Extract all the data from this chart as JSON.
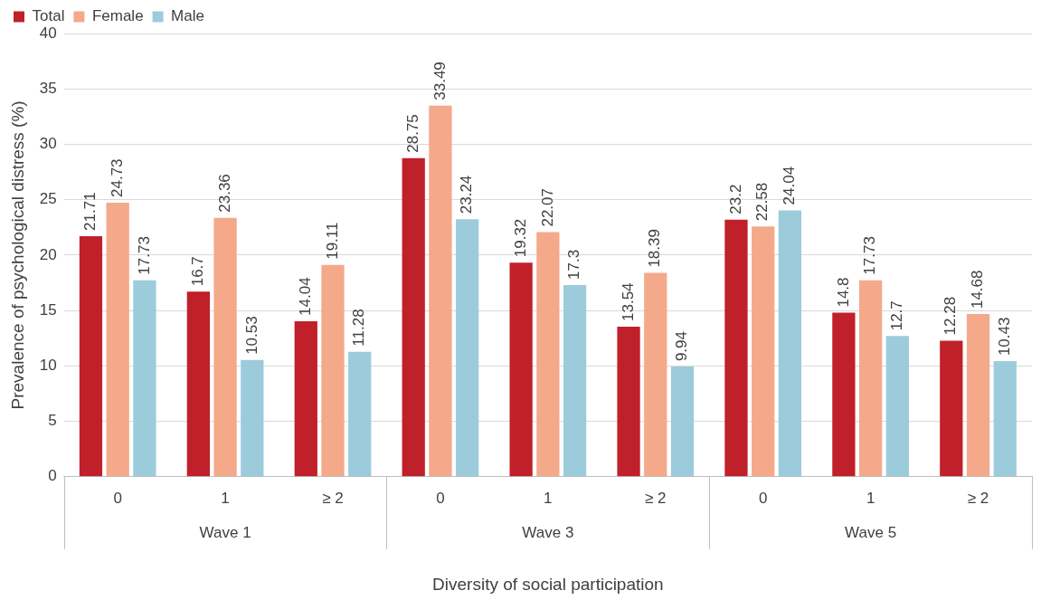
{
  "chart_data": {
    "type": "bar",
    "xlabel": "Diversity of social participation",
    "ylabel": "Prevalence of psychological distress (%)",
    "categories": [
      "0",
      "1",
      "≥ 2",
      "0",
      "1",
      "≥ 2",
      "0",
      "1",
      "≥ 2"
    ],
    "series": [
      {
        "name": "Total",
        "color": "#c0202a",
        "values": [
          21.71,
          16.7,
          14.04,
          28.75,
          19.32,
          13.54,
          23.2,
          14.8,
          12.28
        ]
      },
      {
        "name": "Female",
        "color": "#f4a98a",
        "values": [
          24.73,
          23.36,
          19.11,
          33.49,
          22.07,
          18.39,
          22.58,
          17.73,
          14.68
        ]
      },
      {
        "name": "Male",
        "color": "#9ccbdc",
        "values": [
          17.73,
          10.53,
          11.28,
          23.24,
          17.3,
          9.94,
          24.04,
          12.7,
          10.43
        ]
      }
    ],
    "ylim": [
      0,
      40
    ],
    "yticks": [
      0,
      5,
      10,
      15,
      20,
      25,
      30,
      35,
      40
    ],
    "grid": "y",
    "legend": "top left",
    "data_labels": true,
    "annotations": [
      "Wave 1",
      "Wave 3",
      "Wave 5"
    ]
  }
}
